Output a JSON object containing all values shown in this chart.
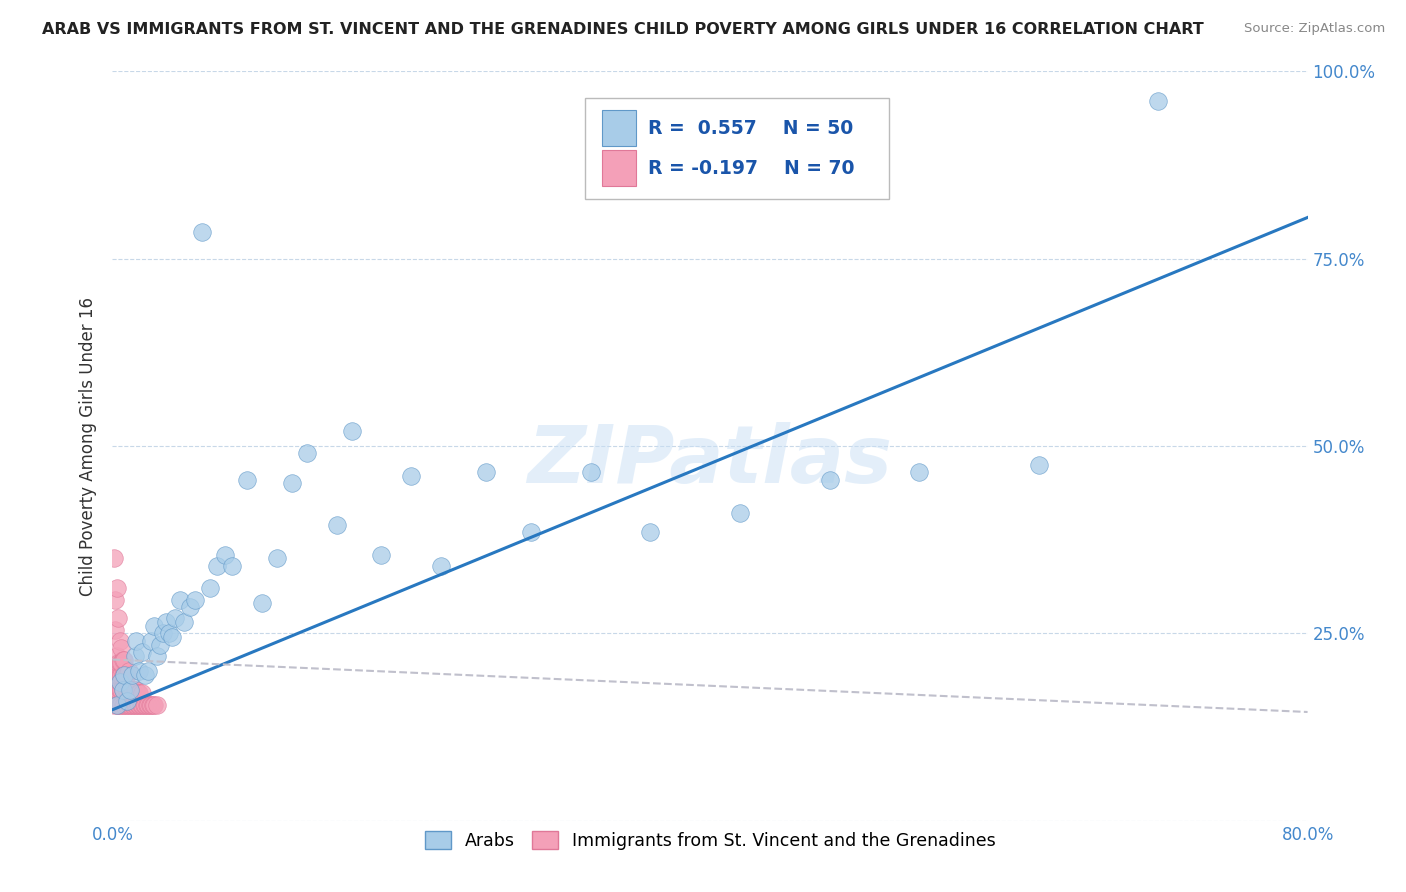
{
  "title": "ARAB VS IMMIGRANTS FROM ST. VINCENT AND THE GRENADINES CHILD POVERTY AMONG GIRLS UNDER 16 CORRELATION CHART",
  "source": "Source: ZipAtlas.com",
  "ylabel": "Child Poverty Among Girls Under 16",
  "xlim": [
    0,
    0.8
  ],
  "ylim": [
    0,
    1.0
  ],
  "color_arab": "#a8cce8",
  "color_stvincent": "#f4a0b8",
  "color_line_arab": "#2878c0",
  "color_line_stvincent": "#c0c0cc",
  "watermark": "ZIPatlas",
  "arab_x": [
    0.003,
    0.005,
    0.007,
    0.008,
    0.01,
    0.012,
    0.013,
    0.015,
    0.016,
    0.018,
    0.02,
    0.022,
    0.024,
    0.026,
    0.028,
    0.03,
    0.032,
    0.034,
    0.036,
    0.038,
    0.04,
    0.042,
    0.045,
    0.048,
    0.052,
    0.055,
    0.06,
    0.065,
    0.07,
    0.075,
    0.08,
    0.09,
    0.1,
    0.11,
    0.12,
    0.13,
    0.15,
    0.16,
    0.18,
    0.2,
    0.22,
    0.25,
    0.28,
    0.32,
    0.36,
    0.42,
    0.48,
    0.54,
    0.62,
    0.7
  ],
  "arab_y": [
    0.155,
    0.185,
    0.175,
    0.195,
    0.16,
    0.175,
    0.195,
    0.22,
    0.24,
    0.2,
    0.225,
    0.195,
    0.2,
    0.24,
    0.26,
    0.22,
    0.235,
    0.25,
    0.265,
    0.25,
    0.245,
    0.27,
    0.295,
    0.265,
    0.285,
    0.295,
    0.785,
    0.31,
    0.34,
    0.355,
    0.34,
    0.455,
    0.29,
    0.35,
    0.45,
    0.49,
    0.395,
    0.52,
    0.355,
    0.46,
    0.34,
    0.465,
    0.385,
    0.465,
    0.385,
    0.41,
    0.455,
    0.465,
    0.475,
    0.96
  ],
  "sv_x": [
    0.001,
    0.001,
    0.001,
    0.002,
    0.002,
    0.002,
    0.002,
    0.003,
    0.003,
    0.003,
    0.003,
    0.003,
    0.004,
    0.004,
    0.004,
    0.004,
    0.004,
    0.005,
    0.005,
    0.005,
    0.005,
    0.005,
    0.006,
    0.006,
    0.006,
    0.006,
    0.006,
    0.007,
    0.007,
    0.007,
    0.007,
    0.008,
    0.008,
    0.008,
    0.008,
    0.009,
    0.009,
    0.009,
    0.01,
    0.01,
    0.01,
    0.011,
    0.011,
    0.011,
    0.012,
    0.012,
    0.013,
    0.013,
    0.014,
    0.014,
    0.015,
    0.015,
    0.016,
    0.016,
    0.017,
    0.017,
    0.018,
    0.018,
    0.019,
    0.02,
    0.02,
    0.021,
    0.022,
    0.023,
    0.024,
    0.025,
    0.026,
    0.027,
    0.028,
    0.03
  ],
  "sv_y": [
    0.155,
    0.2,
    0.35,
    0.165,
    0.195,
    0.255,
    0.295,
    0.155,
    0.175,
    0.195,
    0.22,
    0.31,
    0.155,
    0.175,
    0.195,
    0.21,
    0.27,
    0.155,
    0.175,
    0.195,
    0.21,
    0.24,
    0.155,
    0.175,
    0.195,
    0.21,
    0.23,
    0.155,
    0.175,
    0.195,
    0.215,
    0.155,
    0.175,
    0.195,
    0.215,
    0.155,
    0.175,
    0.195,
    0.155,
    0.175,
    0.195,
    0.155,
    0.175,
    0.2,
    0.155,
    0.175,
    0.155,
    0.175,
    0.155,
    0.175,
    0.155,
    0.175,
    0.155,
    0.175,
    0.155,
    0.17,
    0.155,
    0.17,
    0.155,
    0.155,
    0.17,
    0.155,
    0.155,
    0.155,
    0.155,
    0.155,
    0.155,
    0.155,
    0.155,
    0.155
  ],
  "line_arab_x0": 0.0,
  "line_arab_y0": 0.148,
  "line_arab_x1": 0.8,
  "line_arab_y1": 0.805,
  "line_sv_x0": 0.0,
  "line_sv_y0": 0.215,
  "line_sv_x1": 0.8,
  "line_sv_y1": 0.145
}
